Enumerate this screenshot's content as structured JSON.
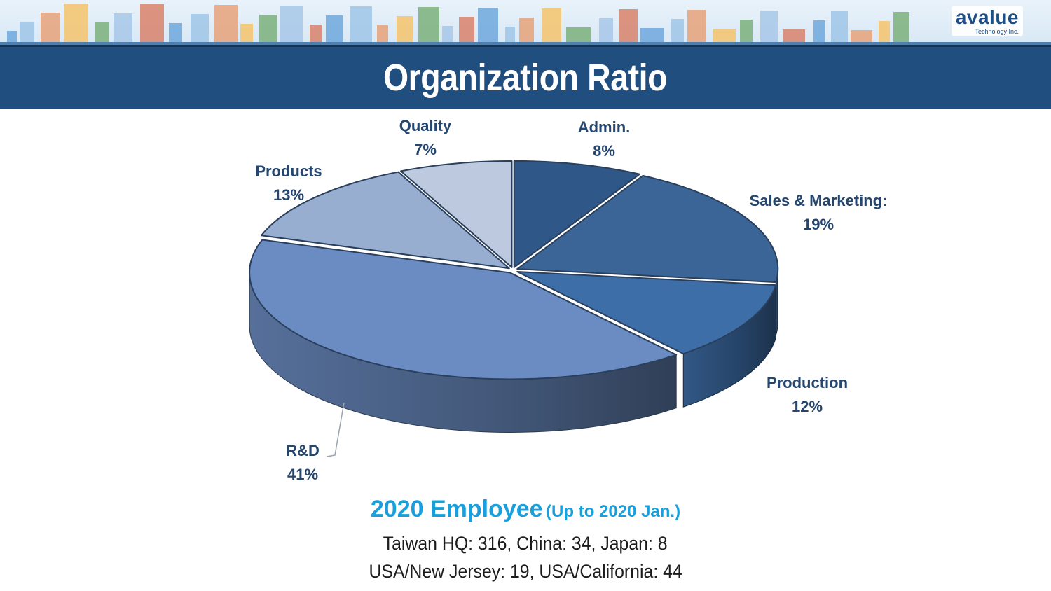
{
  "slide": {
    "title": "Organization Ratio",
    "logo": {
      "name": "avalue",
      "subtitle": "Technology Inc."
    }
  },
  "chart_data": {
    "type": "pie",
    "categories": [
      "Admin.",
      "Sales & Marketing:",
      "Production",
      "R&D",
      "Products",
      "Quality"
    ],
    "values": [
      8,
      19,
      12,
      41,
      13,
      7
    ],
    "value_labels": [
      "8%",
      "19%",
      "12%",
      "41%",
      "13%",
      "7%"
    ],
    "colors": [
      "#2f5888",
      "#3b6497",
      "#3e6ea8",
      "#6b8cc2",
      "#97aed1",
      "#bcc9de"
    ],
    "exploded": true,
    "style": "3d"
  },
  "employees": {
    "heading_year": "2020 Employee",
    "heading_note": "(Up to 2020 Jan.)",
    "line1": "Taiwan HQ: 316, China: 34, Japan: 8",
    "line2": "USA/New Jersey: 19, USA/California: 44"
  }
}
